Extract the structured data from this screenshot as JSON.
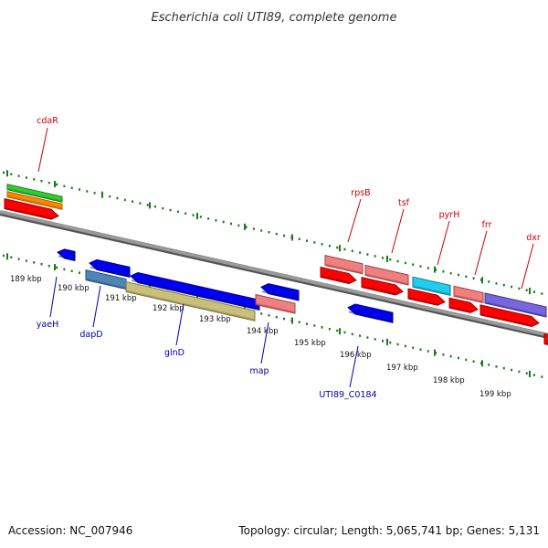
{
  "title": "Escherichia coli UTI89, complete genome",
  "footer": {
    "accession": "Accession: NC_007946",
    "topology": "Topology: circular; Length: 5,065,741 bp; Genes: 5,131"
  },
  "colors": {
    "backbone": "#808080",
    "tick": "#1a7a1a",
    "top_label": "#cc0000",
    "bottom_label": "#0000aa"
  },
  "scale_labels": [
    "189 kbp",
    "190 kbp",
    "191 kbp",
    "192 kbp",
    "193 kbp",
    "194 kbp",
    "195 kbp",
    "196 kbp",
    "197 kbp",
    "198 kbp",
    "199 kbp"
  ],
  "top_labels": [
    "cdaR",
    "rpsB",
    "tsf",
    "pyrH",
    "frr",
    "dxr"
  ],
  "bottom_labels": [
    "yaeH",
    "dapD",
    "glnD",
    "map",
    "UTI89_C0184"
  ]
}
